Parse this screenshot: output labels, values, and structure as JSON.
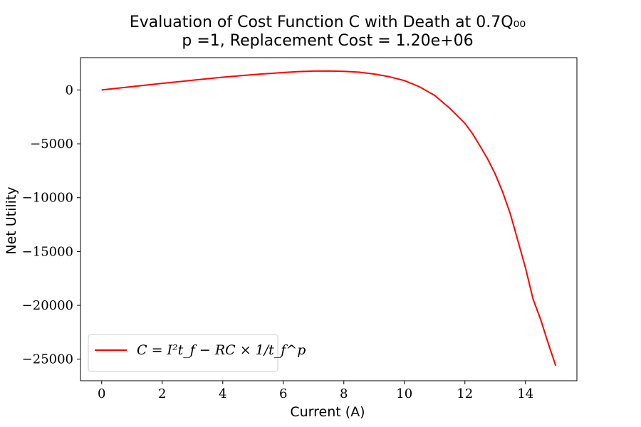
{
  "chart_data": {
    "type": "line",
    "title_line1": "Evaluation of Cost Function C with Death at 0.7Q₀₀",
    "title_line2": "p =1, Replacement Cost = 1.20e+06",
    "xlabel": "Current (A)",
    "ylabel": "Net Utility",
    "xlim": [
      -0.7,
      15.7
    ],
    "ylim": [
      -27000,
      3000
    ],
    "x_ticks": [
      0,
      2,
      4,
      6,
      8,
      10,
      12,
      14
    ],
    "y_ticks": [
      0,
      -5000,
      -10000,
      -15000,
      -20000,
      -25000
    ],
    "x_tick_labels": [
      "0",
      "2",
      "4",
      "6",
      "8",
      "10",
      "12",
      "14"
    ],
    "y_tick_labels": [
      "0",
      "−5000",
      "−10000",
      "−15000",
      "−20000",
      "−25000"
    ],
    "grid": false,
    "legend_position": "lower-left",
    "series": [
      {
        "name": "C = I²t_f − RC × 1/t_f^p",
        "color": "#ff0000",
        "x": [
          0,
          1,
          2,
          3,
          4,
          5,
          6,
          6.5,
          7,
          7.5,
          8,
          8.5,
          9,
          9.5,
          10,
          10.5,
          11,
          11.5,
          12,
          12.25,
          12.5,
          12.75,
          13,
          13.25,
          13.5,
          13.75,
          14,
          14.25,
          14.5,
          14.75,
          15
        ],
        "y": [
          0,
          310,
          610,
          900,
          1180,
          1420,
          1620,
          1700,
          1750,
          1760,
          1730,
          1650,
          1480,
          1230,
          870,
          290,
          -500,
          -1700,
          -3100,
          -4050,
          -5200,
          -6400,
          -7800,
          -9500,
          -11500,
          -14000,
          -16500,
          -19400,
          -21300,
          -23500,
          -25600
        ]
      }
    ],
    "legend_label": "C = I²t_f − RC × 1/t_f^p"
  }
}
